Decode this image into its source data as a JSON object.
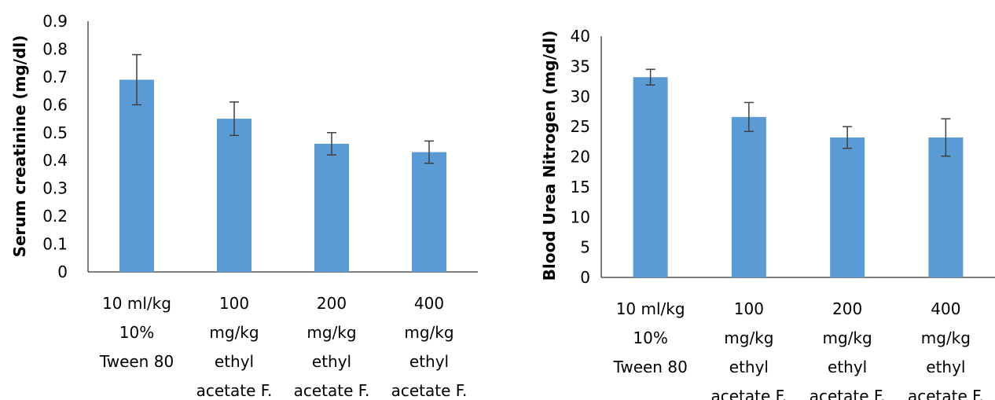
{
  "chart_data": [
    {
      "type": "bar",
      "title": "",
      "xlabel": "",
      "ylabel": "Serum creatinine (mg/dl)",
      "ylim": [
        0,
        0.9
      ],
      "yticks": [
        "0",
        "0.1",
        "0.2",
        "0.3",
        "0.4",
        "0.5",
        "0.6",
        "0.7",
        "0.8",
        "0.9"
      ],
      "categories": [
        [
          "10 ml/kg",
          "10%",
          "Tween 80"
        ],
        [
          "100",
          "mg/kg",
          "ethyl",
          "acetate F."
        ],
        [
          "200",
          "mg/kg",
          "ethyl",
          "acetate F."
        ],
        [
          "400",
          "mg/kg",
          "ethyl",
          "acetate F."
        ]
      ],
      "values": [
        0.69,
        0.55,
        0.46,
        0.43
      ],
      "errors": [
        0.09,
        0.06,
        0.04,
        0.04
      ],
      "grid": false,
      "legend": "none"
    },
    {
      "type": "bar",
      "title": "",
      "xlabel": "",
      "ylabel": "Blood Urea Nitrogen (mg/dl)",
      "ylim": [
        0,
        40
      ],
      "yticks": [
        "0",
        "5",
        "10",
        "15",
        "20",
        "25",
        "30",
        "35",
        "40"
      ],
      "categories": [
        [
          "10 ml/kg",
          "10%",
          "Tween 80"
        ],
        [
          "100",
          "mg/kg",
          "ethyl",
          "acetate F."
        ],
        [
          "200",
          "mg/kg",
          "ethyl",
          "acetate F."
        ],
        [
          "400",
          "mg/kg",
          "ethyl",
          "acetate F."
        ]
      ],
      "values": [
        33.2,
        26.6,
        23.2,
        23.2
      ],
      "errors": [
        1.3,
        2.4,
        1.8,
        3.1
      ],
      "grid": false,
      "legend": "none"
    }
  ],
  "colors": {
    "bar": "#5b9bd5",
    "axis": "#000000",
    "error_bar": "#404040"
  }
}
